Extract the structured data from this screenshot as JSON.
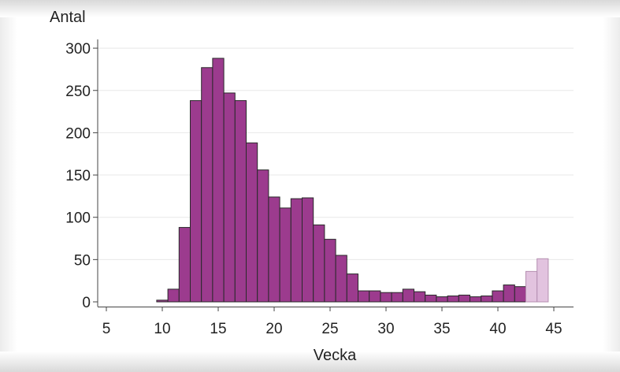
{
  "chart_data": {
    "type": "bar",
    "xlabel": "Vecka",
    "ylabel": "Antal",
    "xlim": [
      4.5,
      45.5
    ],
    "ylim": [
      0,
      310
    ],
    "xticks": [
      "5",
      "10",
      "15",
      "20",
      "25",
      "30",
      "35",
      "40",
      "45"
    ],
    "yticks": [
      "0",
      "50",
      "100",
      "150",
      "200",
      "250",
      "300"
    ],
    "grid": true,
    "bar_color": "#9c3b8e",
    "bar_color_light": "#e2c3df",
    "bar_edge_color": "#2a2a2a",
    "x": [
      10,
      11,
      12,
      13,
      14,
      15,
      16,
      17,
      18,
      19,
      20,
      21,
      22,
      23,
      24,
      25,
      26,
      27,
      28,
      29,
      30,
      31,
      32,
      33,
      34,
      35,
      36,
      37,
      38,
      39,
      40,
      41,
      42,
      43,
      44
    ],
    "values": [
      2,
      15,
      88,
      238,
      277,
      288,
      247,
      238,
      188,
      156,
      124,
      111,
      122,
      123,
      91,
      74,
      55,
      33,
      13,
      13,
      11,
      11,
      15,
      12,
      8,
      6,
      7,
      8,
      6,
      7,
      13,
      20,
      18,
      36,
      51
    ],
    "light": [
      false,
      false,
      false,
      false,
      false,
      false,
      false,
      false,
      false,
      false,
      false,
      false,
      false,
      false,
      false,
      false,
      false,
      false,
      false,
      false,
      false,
      false,
      false,
      false,
      false,
      false,
      false,
      false,
      false,
      false,
      false,
      false,
      false,
      true,
      true
    ]
  }
}
